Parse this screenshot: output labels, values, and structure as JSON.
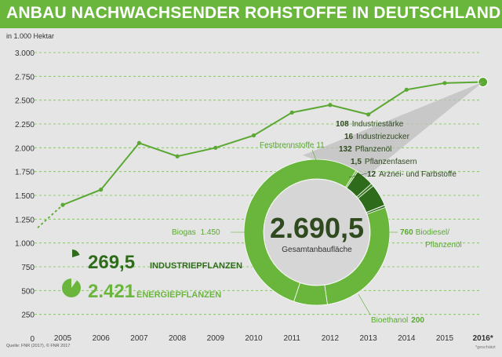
{
  "title": "ANBAU NACHWACHSENDER ROHSTOFFE IN DEUTSCHLAND",
  "unit_label": "in 1.000 Hektar",
  "source": "Quelle: FNR (2017), © FNR 2017",
  "footnote": "*geschätzt",
  "colors": {
    "title_band": "#6ab63d",
    "line": "#5aa832",
    "energy": "#6ab63d",
    "industry": "#2e6b1a",
    "background": "#e5e5e5",
    "donut_center": "#d6d6d6",
    "fan": "#bdbdbd"
  },
  "summary": {
    "industry_value": "269,5",
    "industry_label": "INDUSTRIEPFLANZEN",
    "energy_value": "2.421",
    "energy_label": "ENERGIEPFLANZEN"
  },
  "donut": {
    "total": "2.690,5",
    "total_label": "Gesamtanbaufläche"
  },
  "chart_data": [
    {
      "type": "line",
      "title": "ANBAU NACHWACHSENDER ROHSTOFFE IN DEUTSCHLAND",
      "ylabel": "in 1.000 Hektar",
      "ylim": [
        0,
        3000
      ],
      "yticks": [
        0,
        250,
        500,
        750,
        1000,
        1250,
        1500,
        1750,
        2000,
        2250,
        2500,
        2750,
        3000
      ],
      "ytick_labels": [
        "0",
        "250",
        "500",
        "750",
        "1.000",
        "1.250",
        "1.500",
        "1.750",
        "2.000",
        "2.250",
        "2.500",
        "2.750",
        "3.000"
      ],
      "grid": true,
      "categories": [
        "2005",
        "2006",
        "2007",
        "2008",
        "2009",
        "2010",
        "2011",
        "2012",
        "2013",
        "2014",
        "2015",
        "2016*"
      ],
      "series": [
        {
          "values": [
            1400,
            1560,
            2050,
            1910,
            2000,
            2130,
            2370,
            2450,
            2350,
            2610,
            2680,
            2690.5
          ]
        }
      ]
    },
    {
      "type": "pie",
      "slices": [
        {
          "label": "Biodiesel/ Pflanzenöl",
          "value": 760,
          "value_text": "760",
          "group": "energy"
        },
        {
          "label": "Bioethanol",
          "value": 200,
          "value_text": "200",
          "group": "energy"
        },
        {
          "label": "Biogas",
          "value": 1450,
          "value_text": "1.450",
          "group": "energy"
        },
        {
          "label": "Festbrennstoffe",
          "value": 11,
          "value_text": "11",
          "group": "energy"
        },
        {
          "label": "Industriestärke",
          "value": 108,
          "value_text": "108",
          "group": "industry"
        },
        {
          "label": "Industriezucker",
          "value": 16,
          "value_text": "16",
          "group": "industry"
        },
        {
          "label": "Pflanzenöl",
          "value": 132,
          "value_text": "132",
          "group": "industry"
        },
        {
          "label": "Pflanzenfasern",
          "value": 1.5,
          "value_text": "1,5",
          "group": "industry"
        },
        {
          "label": "Arznei- und Farbstoffe",
          "value": 12,
          "value_text": "12",
          "group": "industry"
        }
      ]
    }
  ]
}
